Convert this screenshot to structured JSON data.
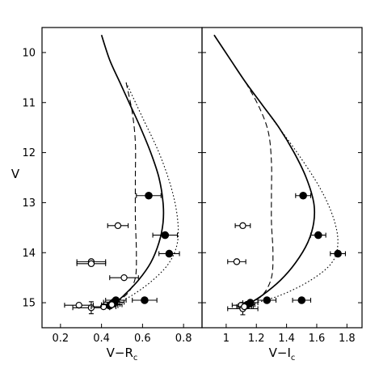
{
  "chart_data": [
    {
      "type": "scatter",
      "panel": "left",
      "xlabel": "V−R",
      "xlabel_sub": "c",
      "ylabel": "V",
      "xlim": [
        0.11,
        0.89
      ],
      "ylim": [
        15.5,
        9.5
      ],
      "y_inverted": true,
      "xticks": [
        0.2,
        0.4,
        0.6,
        0.8
      ],
      "xtick_labels": [
        "0.2",
        "0.4",
        "0.6",
        "0.8"
      ],
      "yticks": [
        10,
        11,
        12,
        13,
        14,
        15
      ],
      "ytick_labels": [
        "10",
        "11",
        "12",
        "13",
        "14",
        "15"
      ],
      "grid": false,
      "series": [
        {
          "marker": "filled-circle",
          "points": [
            {
              "x": 0.63,
              "y": 12.86,
              "xerr": 0.06
            },
            {
              "x": 0.71,
              "y": 13.65,
              "xerr": 0.06
            },
            {
              "x": 0.73,
              "y": 14.02,
              "xerr": 0.05
            },
            {
              "x": 0.61,
              "y": 14.95,
              "xerr": 0.06
            },
            {
              "x": 0.47,
              "y": 14.95,
              "xerr": 0.05
            },
            {
              "x": 0.46,
              "y": 14.99,
              "xerr": 0.05
            },
            {
              "x": 0.45,
              "y": 15.03,
              "xerr": 0.04
            },
            {
              "x": 0.44,
              "y": 15.06,
              "xerr": 0.04
            }
          ]
        },
        {
          "marker": "open-circle",
          "points": [
            {
              "x": 0.48,
              "y": 13.46,
              "xerr": 0.05
            },
            {
              "x": 0.35,
              "y": 14.18,
              "xerr": 0.07
            },
            {
              "x": 0.35,
              "y": 14.22,
              "xerr": 0.07
            },
            {
              "x": 0.51,
              "y": 14.5,
              "xerr": 0.07
            },
            {
              "x": 0.29,
              "y": 15.05,
              "xerr": 0.07
            },
            {
              "x": 0.35,
              "y": 15.1,
              "xerr": 0.09,
              "yerr": 0.12
            },
            {
              "x": 0.41,
              "y": 15.08,
              "xerr": 0.06
            },
            {
              "x": 0.45,
              "y": 15.04,
              "xerr": 0.05
            }
          ]
        },
        {
          "line_style": "solid",
          "points": [
            {
              "x": 0.4,
              "y": 9.65
            },
            {
              "x": 0.44,
              "y": 10.15
            },
            {
              "x": 0.49,
              "y": 10.6
            },
            {
              "x": 0.54,
              "y": 11.05
            },
            {
              "x": 0.59,
              "y": 11.5
            },
            {
              "x": 0.64,
              "y": 12.0
            },
            {
              "x": 0.68,
              "y": 12.5
            },
            {
              "x": 0.7,
              "y": 13.0
            },
            {
              "x": 0.7,
              "y": 13.4
            },
            {
              "x": 0.68,
              "y": 13.8
            },
            {
              "x": 0.64,
              "y": 14.2
            },
            {
              "x": 0.58,
              "y": 14.55
            },
            {
              "x": 0.51,
              "y": 14.85
            },
            {
              "x": 0.46,
              "y": 15.03
            }
          ]
        },
        {
          "line_style": "dashed",
          "points": [
            {
              "x": 0.52,
              "y": 10.6
            },
            {
              "x": 0.55,
              "y": 11.2
            },
            {
              "x": 0.565,
              "y": 11.8
            },
            {
              "x": 0.565,
              "y": 12.5
            },
            {
              "x": 0.565,
              "y": 13.3
            },
            {
              "x": 0.57,
              "y": 14.0
            },
            {
              "x": 0.565,
              "y": 14.5
            },
            {
              "x": 0.53,
              "y": 14.8
            },
            {
              "x": 0.47,
              "y": 15.0
            }
          ]
        },
        {
          "line_style": "dotted",
          "points": [
            {
              "x": 0.52,
              "y": 10.6
            },
            {
              "x": 0.6,
              "y": 11.3
            },
            {
              "x": 0.68,
              "y": 12.0
            },
            {
              "x": 0.74,
              "y": 12.7
            },
            {
              "x": 0.77,
              "y": 13.3
            },
            {
              "x": 0.77,
              "y": 13.8
            },
            {
              "x": 0.73,
              "y": 14.2
            },
            {
              "x": 0.65,
              "y": 14.55
            },
            {
              "x": 0.55,
              "y": 14.85
            },
            {
              "x": 0.47,
              "y": 15.02
            }
          ]
        }
      ]
    },
    {
      "type": "scatter",
      "panel": "right",
      "xlabel": "V−I",
      "xlabel_sub": "c",
      "xlim": [
        0.84,
        1.9
      ],
      "ylim": [
        15.5,
        9.5
      ],
      "y_inverted": true,
      "xticks": [
        1.0,
        1.2,
        1.4,
        1.6,
        1.8
      ],
      "xtick_labels": [
        "1",
        "1.2",
        "1.4",
        "1.6",
        "1.8"
      ],
      "grid": false,
      "series": [
        {
          "marker": "filled-circle",
          "points": [
            {
              "x": 1.51,
              "y": 12.86,
              "xerr": 0.05
            },
            {
              "x": 1.61,
              "y": 13.65,
              "xerr": 0.05
            },
            {
              "x": 1.74,
              "y": 14.02,
              "xerr": 0.05
            },
            {
              "x": 1.5,
              "y": 14.95,
              "xerr": 0.06
            },
            {
              "x": 1.27,
              "y": 14.95,
              "xerr": 0.06
            },
            {
              "x": 1.16,
              "y": 15.0,
              "xerr": 0.05
            },
            {
              "x": 1.14,
              "y": 15.04,
              "xerr": 0.05
            },
            {
              "x": 1.13,
              "y": 15.06,
              "xerr": 0.05
            }
          ]
        },
        {
          "marker": "open-circle",
          "points": [
            {
              "x": 1.11,
              "y": 13.46,
              "xerr": 0.05
            },
            {
              "x": 1.07,
              "y": 14.18,
              "xerr": 0.06
            },
            {
              "x": 1.1,
              "y": 15.05,
              "xerr": 0.06
            },
            {
              "x": 1.11,
              "y": 15.12,
              "xerr": 0.1,
              "yerr": 0.12
            },
            {
              "x": 1.12,
              "y": 15.08,
              "xerr": 0.05
            }
          ]
        },
        {
          "line_style": "solid",
          "points": [
            {
              "x": 0.92,
              "y": 9.65
            },
            {
              "x": 1.03,
              "y": 10.15
            },
            {
              "x": 1.13,
              "y": 10.6
            },
            {
              "x": 1.24,
              "y": 11.05
            },
            {
              "x": 1.35,
              "y": 11.5
            },
            {
              "x": 1.45,
              "y": 12.0
            },
            {
              "x": 1.53,
              "y": 12.5
            },
            {
              "x": 1.58,
              "y": 13.0
            },
            {
              "x": 1.58,
              "y": 13.4
            },
            {
              "x": 1.54,
              "y": 13.8
            },
            {
              "x": 1.46,
              "y": 14.2
            },
            {
              "x": 1.36,
              "y": 14.55
            },
            {
              "x": 1.24,
              "y": 14.85
            },
            {
              "x": 1.14,
              "y": 15.04
            }
          ]
        },
        {
          "line_style": "dashed",
          "points": [
            {
              "x": 1.13,
              "y": 10.6
            },
            {
              "x": 1.22,
              "y": 11.1
            },
            {
              "x": 1.28,
              "y": 11.6
            },
            {
              "x": 1.3,
              "y": 12.2
            },
            {
              "x": 1.3,
              "y": 12.8
            },
            {
              "x": 1.3,
              "y": 13.4
            },
            {
              "x": 1.31,
              "y": 14.0
            },
            {
              "x": 1.3,
              "y": 14.5
            },
            {
              "x": 1.24,
              "y": 14.85
            },
            {
              "x": 1.14,
              "y": 15.04
            }
          ]
        },
        {
          "line_style": "dotted",
          "points": [
            {
              "x": 1.13,
              "y": 10.6
            },
            {
              "x": 1.3,
              "y": 11.3
            },
            {
              "x": 1.47,
              "y": 12.0
            },
            {
              "x": 1.62,
              "y": 12.7
            },
            {
              "x": 1.71,
              "y": 13.3
            },
            {
              "x": 1.74,
              "y": 13.8
            },
            {
              "x": 1.7,
              "y": 14.2
            },
            {
              "x": 1.56,
              "y": 14.55
            },
            {
              "x": 1.36,
              "y": 14.85
            },
            {
              "x": 1.15,
              "y": 15.04
            }
          ]
        }
      ]
    }
  ]
}
